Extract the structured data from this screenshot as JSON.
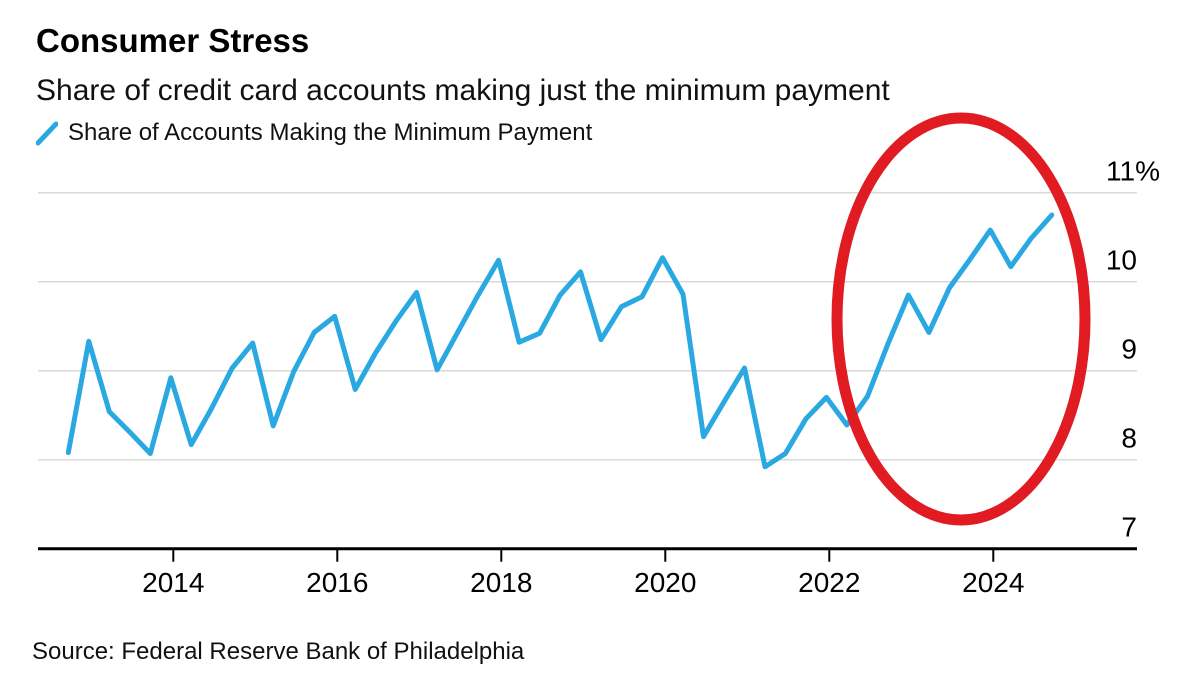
{
  "header": {
    "title": "Consumer Stress",
    "subtitle": "Share of credit card accounts making just the minimum payment"
  },
  "legend": {
    "series_label": "Share of Accounts Making the Minimum Payment",
    "swatch_icon": "blue-line-slash-icon"
  },
  "footer": {
    "source": "Source: Federal Reserve Bank of Philadelphia"
  },
  "colors": {
    "line": "#29a8e2",
    "highlight": "#e01b22",
    "gridline": "#d9d9d9",
    "axis": "#000000",
    "text": "#000000"
  },
  "chart_data": {
    "type": "line",
    "title": "Consumer Stress",
    "subtitle": "Share of credit card accounts making just the minimum payment",
    "series_name": "Share of Accounts Making the Minimum Payment",
    "unit": "%",
    "x": [
      "Q3 2012",
      "Q4 2012",
      "Q1 2013",
      "Q2 2013",
      "Q3 2013",
      "Q4 2013",
      "Q1 2014",
      "Q2 2014",
      "Q3 2014",
      "Q4 2014",
      "Q1 2015",
      "Q2 2015",
      "Q3 2015",
      "Q4 2015",
      "Q1 2016",
      "Q2 2016",
      "Q3 2016",
      "Q4 2016",
      "Q1 2017",
      "Q2 2017",
      "Q3 2017",
      "Q4 2017",
      "Q1 2018",
      "Q2 2018",
      "Q3 2018",
      "Q4 2018",
      "Q1 2019",
      "Q2 2019",
      "Q3 2019",
      "Q4 2019",
      "Q1 2020",
      "Q2 2020",
      "Q3 2020",
      "Q4 2020",
      "Q1 2021",
      "Q2 2021",
      "Q3 2021",
      "Q4 2021",
      "Q1 2022",
      "Q2 2022",
      "Q3 2022",
      "Q4 2022",
      "Q1 2023",
      "Q2 2023",
      "Q3 2023",
      "Q4 2023",
      "Q1 2024",
      "Q2 2024",
      "Q3 2024"
    ],
    "values": [
      8.08,
      9.33,
      8.54,
      8.31,
      8.07,
      8.92,
      8.17,
      8.58,
      9.03,
      9.31,
      8.38,
      8.99,
      9.43,
      9.61,
      8.79,
      9.2,
      9.56,
      9.88,
      9.01,
      9.43,
      9.85,
      10.24,
      9.32,
      9.42,
      9.85,
      10.11,
      9.35,
      9.72,
      9.83,
      10.27,
      9.86,
      8.26,
      8.65,
      9.03,
      7.92,
      8.07,
      8.46,
      8.7,
      8.39,
      8.71,
      9.3,
      9.85,
      9.43,
      9.93,
      10.25,
      10.58,
      10.17,
      10.49,
      10.75
    ],
    "ylim": [
      7,
      11
    ],
    "yticks": [
      {
        "value": 11,
        "label": "11%"
      },
      {
        "value": 10,
        "label": "10"
      },
      {
        "value": 9,
        "label": "9"
      },
      {
        "value": 8,
        "label": "8"
      },
      {
        "value": 7,
        "label": "7"
      }
    ],
    "xticks": [
      "2014",
      "2016",
      "2018",
      "2020",
      "2022",
      "2024"
    ],
    "grid": "horizontal",
    "legend_position": "top-left",
    "y_axis_side": "right",
    "annotation": {
      "shape": "ellipse",
      "purpose": "red circle highlighting the 2022-2024 rise",
      "x_range": [
        "Q1 2022",
        "Q3 2024"
      ],
      "cx": 961,
      "cy": 319,
      "rx": 124,
      "ry": 201,
      "stroke_width": 11
    }
  }
}
